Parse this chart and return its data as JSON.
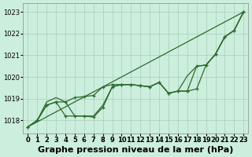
{
  "bg_color": "#cceedd",
  "grid_color": "#aaccbb",
  "line_color": "#2d6a2d",
  "marker_color": "#2d6a2d",
  "title": "Graphe pression niveau de la mer (hPa)",
  "xlim": [
    -0.5,
    23.5
  ],
  "ylim": [
    1017.4,
    1023.4
  ],
  "yticks": [
    1018,
    1019,
    1020,
    1021,
    1022,
    1023
  ],
  "xticks": [
    0,
    1,
    2,
    3,
    4,
    5,
    6,
    7,
    8,
    9,
    10,
    11,
    12,
    13,
    14,
    15,
    16,
    17,
    18,
    19,
    20,
    21,
    22,
    23
  ],
  "series": [
    {
      "x": [
        0,
        1,
        2,
        3,
        4,
        5,
        6,
        7,
        8,
        9,
        10,
        11,
        12,
        13,
        14,
        15,
        16,
        17,
        18,
        19,
        20,
        21,
        22,
        23
      ],
      "y": [
        1017.7,
        1018.0,
        1018.7,
        1018.85,
        1018.85,
        1019.05,
        1019.1,
        1019.15,
        1019.55,
        1019.65,
        1019.65,
        1019.65,
        1019.6,
        1019.55,
        1019.75,
        1019.25,
        1019.35,
        1019.35,
        1020.5,
        1020.55,
        1021.05,
        1021.85,
        1022.15,
        1023.0
      ],
      "marker": true,
      "linestyle": "-"
    },
    {
      "x": [
        0,
        1,
        2,
        3,
        4,
        5,
        6,
        7,
        8,
        9,
        10,
        11,
        12,
        13,
        14,
        15,
        16,
        17,
        18,
        19,
        20,
        21,
        22,
        23
      ],
      "y": [
        1017.7,
        1018.0,
        1018.7,
        1018.85,
        1018.2,
        1018.2,
        1018.2,
        1018.15,
        1018.6,
        1019.55,
        1019.65,
        1019.65,
        1019.6,
        1019.55,
        1019.75,
        1019.25,
        1019.35,
        1019.35,
        1019.45,
        1020.55,
        1021.05,
        1021.85,
        1022.15,
        1023.0
      ],
      "marker": true,
      "linestyle": "-"
    },
    {
      "x": [
        0,
        23
      ],
      "y": [
        1017.7,
        1023.0
      ],
      "marker": false,
      "linestyle": "-"
    },
    {
      "x": [
        0,
        1,
        2,
        3,
        4,
        5,
        6,
        7,
        8,
        9,
        10,
        11,
        12,
        13,
        14,
        15,
        16,
        17,
        18,
        19,
        20,
        21,
        22,
        23
      ],
      "y": [
        1017.7,
        1018.0,
        1018.85,
        1019.05,
        1018.85,
        1018.2,
        1018.2,
        1018.2,
        1018.7,
        1019.55,
        1019.65,
        1019.65,
        1019.6,
        1019.55,
        1019.75,
        1019.25,
        1019.35,
        1020.05,
        1020.5,
        1020.55,
        1021.05,
        1021.85,
        1022.15,
        1023.0
      ],
      "marker": false,
      "linestyle": "-"
    }
  ],
  "marker_size": 3.5,
  "linewidth": 0.9,
  "title_fontsize": 8,
  "tick_fontsize": 6
}
